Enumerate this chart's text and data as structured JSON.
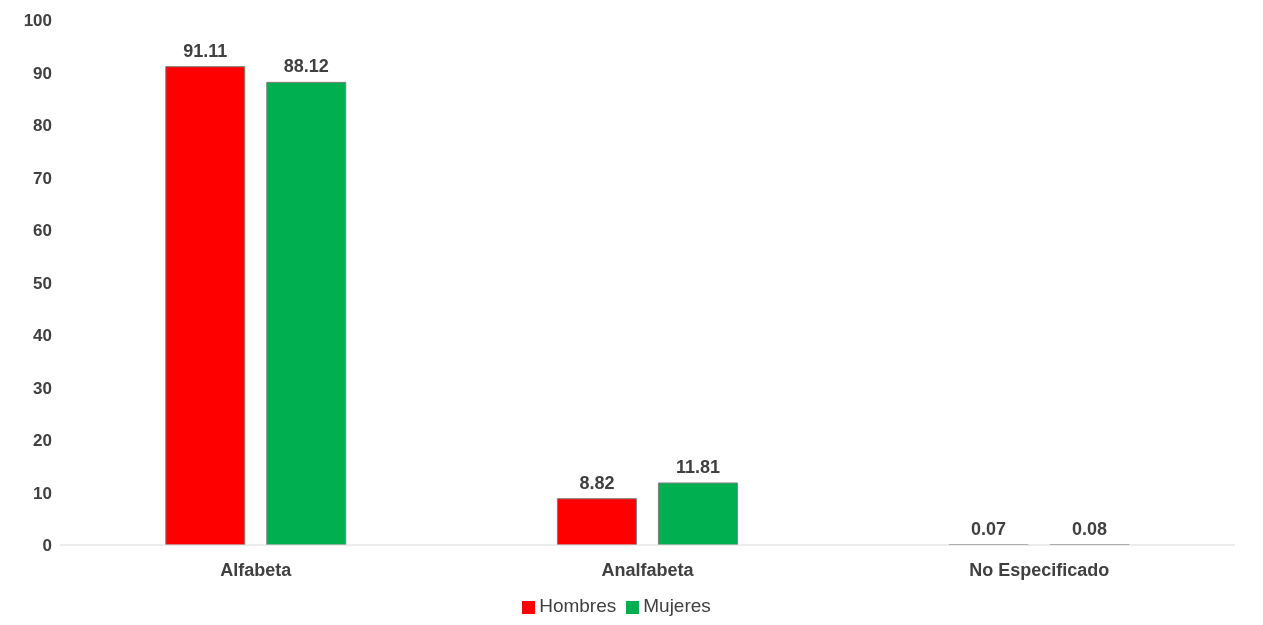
{
  "chart_data": {
    "type": "bar",
    "categories": [
      "Alfabeta",
      "Analfabeta",
      "No Especificado"
    ],
    "series": [
      {
        "name": "Hombres",
        "color": "#ff0000",
        "values": [
          91.11,
          8.82,
          0.07
        ]
      },
      {
        "name": "Mujeres",
        "color": "#00b050",
        "values": [
          88.12,
          11.81,
          0.08
        ]
      }
    ],
    "ylim": [
      0,
      100
    ],
    "yticks": [
      0,
      10,
      20,
      30,
      40,
      50,
      60,
      70,
      80,
      90,
      100
    ],
    "grid": false,
    "legend": "bottom",
    "data_labels": true
  }
}
